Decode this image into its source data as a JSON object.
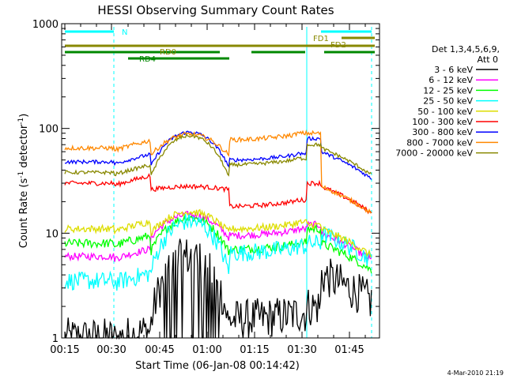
{
  "chart_data": {
    "type": "line",
    "title": "HESSI Observing Summary Count Rates",
    "xlabel": "Start Time (06-Jan-08 00:14:42)",
    "ylabel_main": "Count Rate (s",
    "ylabel_sup1": "-1",
    "ylabel_mid": " detector",
    "ylabel_sup2": "-1",
    "ylabel_end": ")",
    "y_scale": "log",
    "ylim": [
      1,
      1000
    ],
    "x_range_minutes": [
      "00:14:42",
      "01:52:00"
    ],
    "x_ticks": [
      "00:15",
      "00:30",
      "00:45",
      "01:00",
      "01:15",
      "01:30",
      "01:45"
    ],
    "y_ticks": [
      "1",
      "10",
      "100",
      "1000"
    ],
    "legend_title1": "Det 1,3,4,5,6,9,",
    "legend_title2": "Att 0",
    "timestamp": "4-Mar-2010 21:19",
    "series": [
      {
        "name": "3 - 6 keV",
        "color": "#000000"
      },
      {
        "name": "6 - 12 keV",
        "color": "#ff00ff"
      },
      {
        "name": "12 - 25 keV",
        "color": "#00ff00"
      },
      {
        "name": "25 - 50 keV",
        "color": "#00ffff"
      },
      {
        "name": "50 - 100 keV",
        "color": "#dddd00"
      },
      {
        "name": "100 - 300 keV",
        "color": "#ff0000"
      },
      {
        "name": "300 - 800 keV",
        "color": "#0000ff"
      },
      {
        "name": "800 - 7000 keV",
        "color": "#ff8800"
      },
      {
        "name": "7000 - 20000 keV",
        "color": "#888800"
      }
    ],
    "flags": [
      {
        "label": "N",
        "color": "#00ffff"
      },
      {
        "label": "FD1",
        "color": "#888800"
      },
      {
        "label": "FD2",
        "color": "#888800"
      },
      {
        "label": "RD0",
        "color": "#888800"
      },
      {
        "label": "RD4",
        "color": "#008800"
      }
    ]
  }
}
